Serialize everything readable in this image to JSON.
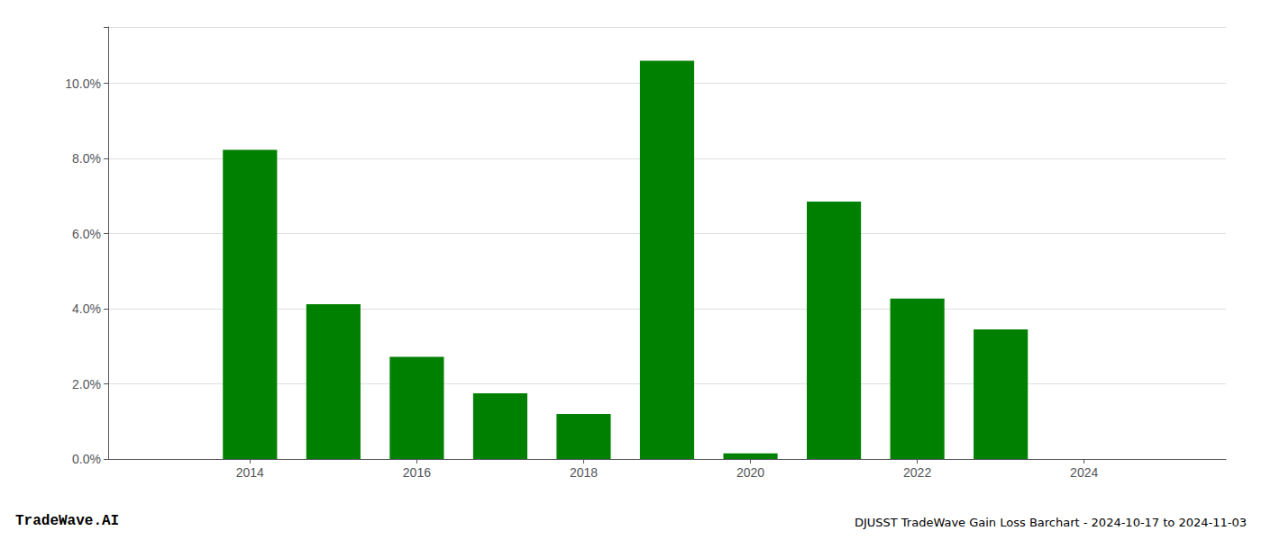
{
  "chart_data": {
    "type": "bar",
    "title": "DJUSST TradeWave Gain Loss Barchart - 2024-10-17 to 2024-11-03",
    "annotations": [
      "TradeWave.AI"
    ],
    "x": [
      2014,
      2015,
      2016,
      2017,
      2018,
      2019,
      2020,
      2021,
      2022,
      2023
    ],
    "values": [
      8.23,
      4.12,
      2.72,
      1.75,
      1.2,
      10.6,
      0.15,
      6.85,
      4.27,
      3.45
    ],
    "color": "#008000",
    "xlim": [
      2012.3,
      2025.7
    ],
    "xticks": [
      2014,
      2016,
      2018,
      2020,
      2022,
      2024
    ],
    "ylim": [
      0,
      11.5
    ],
    "yticks": [
      {
        "value": 0.0,
        "label": "0.0%"
      },
      {
        "value": 2.0,
        "label": "2.0%"
      },
      {
        "value": 4.0,
        "label": "4.0%"
      },
      {
        "value": 6.0,
        "label": "6.0%"
      },
      {
        "value": 8.0,
        "label": "8.0%"
      },
      {
        "value": 10.0,
        "label": "10.0%"
      }
    ],
    "grid": true
  }
}
